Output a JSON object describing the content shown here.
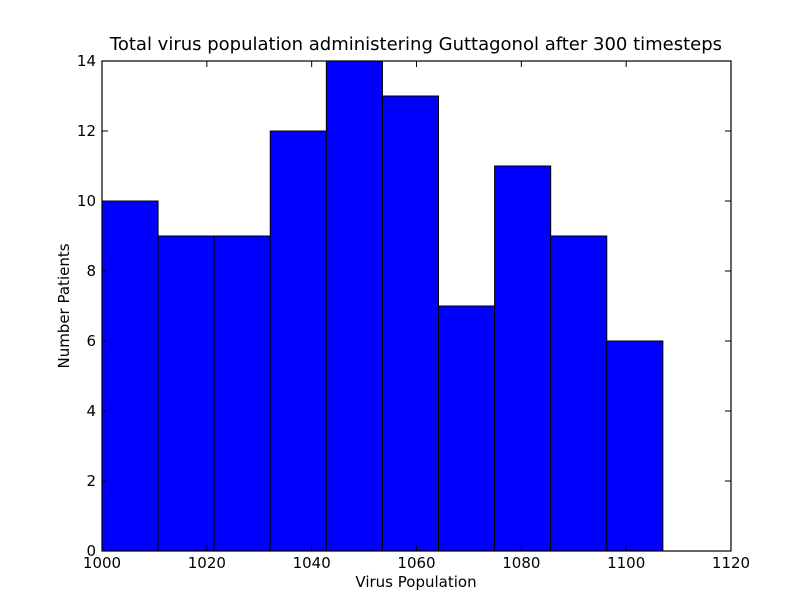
{
  "chart_data": {
    "type": "bar",
    "title": "Total virus population administering Guttagonol after 300 timesteps",
    "xlabel": "Virus Population",
    "ylabel": "Number Patients",
    "xlim": [
      1000,
      1120
    ],
    "ylim": [
      0,
      14
    ],
    "x_ticks": [
      1000,
      1020,
      1040,
      1060,
      1080,
      1100,
      1120
    ],
    "y_ticks": [
      0,
      2,
      4,
      6,
      8,
      10,
      12,
      14
    ],
    "bins": [
      [
        1000.0,
        1010.7
      ],
      [
        1010.7,
        1021.4
      ],
      [
        1021.4,
        1032.1
      ],
      [
        1032.1,
        1042.8
      ],
      [
        1042.8,
        1053.5
      ],
      [
        1053.5,
        1064.2
      ],
      [
        1064.2,
        1074.9
      ],
      [
        1074.9,
        1085.6
      ],
      [
        1085.6,
        1096.3
      ],
      [
        1096.3,
        1107.0
      ]
    ],
    "values": [
      10,
      9,
      9,
      12,
      14,
      13,
      7,
      11,
      9,
      6
    ],
    "bar_color": "#0000ff",
    "edge_color": "#000000",
    "grid": false
  }
}
